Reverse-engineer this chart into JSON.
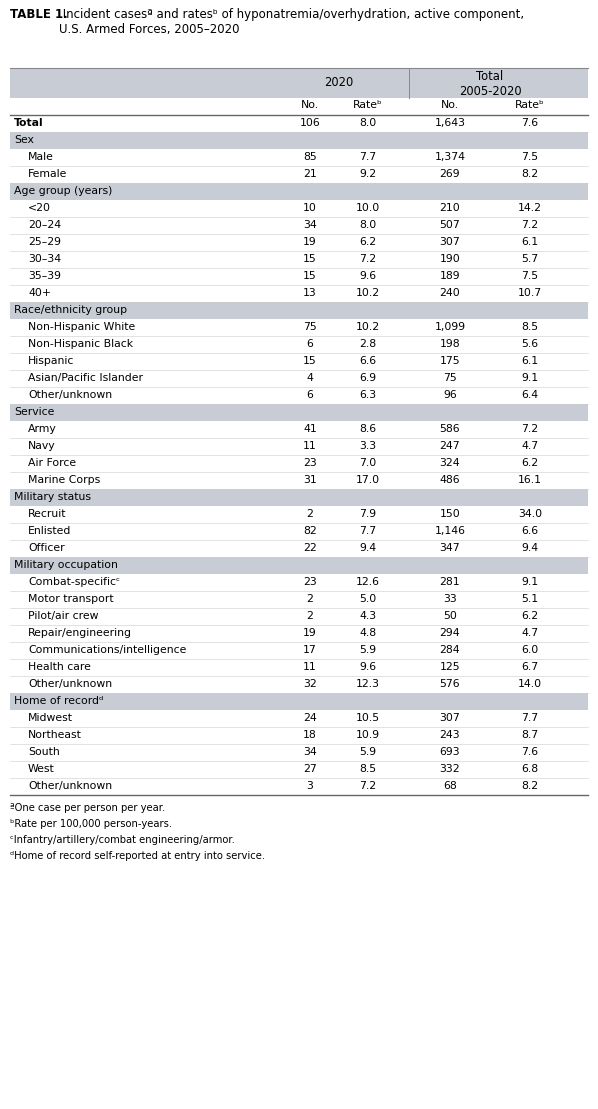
{
  "title_bold": "TABLE 1.",
  "title_rest": " Incident casesª and ratesᵇ of hyponatremia/overhydration, active component,\nU.S. Armed Forces, 2005–2020",
  "section_bg_color": "#c8ccd4",
  "white": "#ffffff",
  "rows": [
    {
      "label": "Total",
      "indent": 0,
      "is_section": false,
      "no2020": "106",
      "rate2020": "8.0",
      "nototal": "1,643",
      "ratetotal": "7.6",
      "bold_label": true
    },
    {
      "label": "Sex",
      "indent": 0,
      "is_section": true,
      "no2020": "",
      "rate2020": "",
      "nototal": "",
      "ratetotal": ""
    },
    {
      "label": "Male",
      "indent": 1,
      "is_section": false,
      "no2020": "85",
      "rate2020": "7.7",
      "nototal": "1,374",
      "ratetotal": "7.5",
      "bold_label": false
    },
    {
      "label": "Female",
      "indent": 1,
      "is_section": false,
      "no2020": "21",
      "rate2020": "9.2",
      "nototal": "269",
      "ratetotal": "8.2",
      "bold_label": false
    },
    {
      "label": "Age group (years)",
      "indent": 0,
      "is_section": true,
      "no2020": "",
      "rate2020": "",
      "nototal": "",
      "ratetotal": ""
    },
    {
      "label": "<20",
      "indent": 1,
      "is_section": false,
      "no2020": "10",
      "rate2020": "10.0",
      "nototal": "210",
      "ratetotal": "14.2",
      "bold_label": false
    },
    {
      "label": "20–24",
      "indent": 1,
      "is_section": false,
      "no2020": "34",
      "rate2020": "8.0",
      "nototal": "507",
      "ratetotal": "7.2",
      "bold_label": false
    },
    {
      "label": "25–29",
      "indent": 1,
      "is_section": false,
      "no2020": "19",
      "rate2020": "6.2",
      "nototal": "307",
      "ratetotal": "6.1",
      "bold_label": false
    },
    {
      "label": "30–34",
      "indent": 1,
      "is_section": false,
      "no2020": "15",
      "rate2020": "7.2",
      "nototal": "190",
      "ratetotal": "5.7",
      "bold_label": false
    },
    {
      "label": "35–39",
      "indent": 1,
      "is_section": false,
      "no2020": "15",
      "rate2020": "9.6",
      "nototal": "189",
      "ratetotal": "7.5",
      "bold_label": false
    },
    {
      "label": "40+",
      "indent": 1,
      "is_section": false,
      "no2020": "13",
      "rate2020": "10.2",
      "nototal": "240",
      "ratetotal": "10.7",
      "bold_label": false
    },
    {
      "label": "Race/ethnicity group",
      "indent": 0,
      "is_section": true,
      "no2020": "",
      "rate2020": "",
      "nototal": "",
      "ratetotal": ""
    },
    {
      "label": "Non-Hispanic White",
      "indent": 1,
      "is_section": false,
      "no2020": "75",
      "rate2020": "10.2",
      "nototal": "1,099",
      "ratetotal": "8.5",
      "bold_label": false
    },
    {
      "label": "Non-Hispanic Black",
      "indent": 1,
      "is_section": false,
      "no2020": "6",
      "rate2020": "2.8",
      "nototal": "198",
      "ratetotal": "5.6",
      "bold_label": false
    },
    {
      "label": "Hispanic",
      "indent": 1,
      "is_section": false,
      "no2020": "15",
      "rate2020": "6.6",
      "nototal": "175",
      "ratetotal": "6.1",
      "bold_label": false
    },
    {
      "label": "Asian/Pacific Islander",
      "indent": 1,
      "is_section": false,
      "no2020": "4",
      "rate2020": "6.9",
      "nototal": "75",
      "ratetotal": "9.1",
      "bold_label": false
    },
    {
      "label": "Other/unknown",
      "indent": 1,
      "is_section": false,
      "no2020": "6",
      "rate2020": "6.3",
      "nototal": "96",
      "ratetotal": "6.4",
      "bold_label": false
    },
    {
      "label": "Service",
      "indent": 0,
      "is_section": true,
      "no2020": "",
      "rate2020": "",
      "nototal": "",
      "ratetotal": ""
    },
    {
      "label": "Army",
      "indent": 1,
      "is_section": false,
      "no2020": "41",
      "rate2020": "8.6",
      "nototal": "586",
      "ratetotal": "7.2",
      "bold_label": false
    },
    {
      "label": "Navy",
      "indent": 1,
      "is_section": false,
      "no2020": "11",
      "rate2020": "3.3",
      "nototal": "247",
      "ratetotal": "4.7",
      "bold_label": false
    },
    {
      "label": "Air Force",
      "indent": 1,
      "is_section": false,
      "no2020": "23",
      "rate2020": "7.0",
      "nototal": "324",
      "ratetotal": "6.2",
      "bold_label": false
    },
    {
      "label": "Marine Corps",
      "indent": 1,
      "is_section": false,
      "no2020": "31",
      "rate2020": "17.0",
      "nototal": "486",
      "ratetotal": "16.1",
      "bold_label": false
    },
    {
      "label": "Military status",
      "indent": 0,
      "is_section": true,
      "no2020": "",
      "rate2020": "",
      "nototal": "",
      "ratetotal": ""
    },
    {
      "label": "Recruit",
      "indent": 1,
      "is_section": false,
      "no2020": "2",
      "rate2020": "7.9",
      "nototal": "150",
      "ratetotal": "34.0",
      "bold_label": false
    },
    {
      "label": "Enlisted",
      "indent": 1,
      "is_section": false,
      "no2020": "82",
      "rate2020": "7.7",
      "nototal": "1,146",
      "ratetotal": "6.6",
      "bold_label": false
    },
    {
      "label": "Officer",
      "indent": 1,
      "is_section": false,
      "no2020": "22",
      "rate2020": "9.4",
      "nototal": "347",
      "ratetotal": "9.4",
      "bold_label": false
    },
    {
      "label": "Military occupation",
      "indent": 0,
      "is_section": true,
      "no2020": "",
      "rate2020": "",
      "nototal": "",
      "ratetotal": ""
    },
    {
      "label": "Combat-specificᶜ",
      "indent": 1,
      "is_section": false,
      "no2020": "23",
      "rate2020": "12.6",
      "nototal": "281",
      "ratetotal": "9.1",
      "bold_label": false
    },
    {
      "label": "Motor transport",
      "indent": 1,
      "is_section": false,
      "no2020": "2",
      "rate2020": "5.0",
      "nototal": "33",
      "ratetotal": "5.1",
      "bold_label": false
    },
    {
      "label": "Pilot/air crew",
      "indent": 1,
      "is_section": false,
      "no2020": "2",
      "rate2020": "4.3",
      "nototal": "50",
      "ratetotal": "6.2",
      "bold_label": false
    },
    {
      "label": "Repair/engineering",
      "indent": 1,
      "is_section": false,
      "no2020": "19",
      "rate2020": "4.8",
      "nototal": "294",
      "ratetotal": "4.7",
      "bold_label": false
    },
    {
      "label": "Communications/intelligence",
      "indent": 1,
      "is_section": false,
      "no2020": "17",
      "rate2020": "5.9",
      "nototal": "284",
      "ratetotal": "6.0",
      "bold_label": false
    },
    {
      "label": "Health care",
      "indent": 1,
      "is_section": false,
      "no2020": "11",
      "rate2020": "9.6",
      "nototal": "125",
      "ratetotal": "6.7",
      "bold_label": false
    },
    {
      "label": "Other/unknown",
      "indent": 1,
      "is_section": false,
      "no2020": "32",
      "rate2020": "12.3",
      "nototal": "576",
      "ratetotal": "14.0",
      "bold_label": false
    },
    {
      "label": "Home of recordᵈ",
      "indent": 0,
      "is_section": true,
      "no2020": "",
      "rate2020": "",
      "nototal": "",
      "ratetotal": ""
    },
    {
      "label": "Midwest",
      "indent": 1,
      "is_section": false,
      "no2020": "24",
      "rate2020": "10.5",
      "nototal": "307",
      "ratetotal": "7.7",
      "bold_label": false
    },
    {
      "label": "Northeast",
      "indent": 1,
      "is_section": false,
      "no2020": "18",
      "rate2020": "10.9",
      "nototal": "243",
      "ratetotal": "8.7",
      "bold_label": false
    },
    {
      "label": "South",
      "indent": 1,
      "is_section": false,
      "no2020": "34",
      "rate2020": "5.9",
      "nototal": "693",
      "ratetotal": "7.6",
      "bold_label": false
    },
    {
      "label": "West",
      "indent": 1,
      "is_section": false,
      "no2020": "27",
      "rate2020": "8.5",
      "nototal": "332",
      "ratetotal": "6.8",
      "bold_label": false
    },
    {
      "label": "Other/unknown",
      "indent": 1,
      "is_section": false,
      "no2020": "3",
      "rate2020": "7.2",
      "nototal": "68",
      "ratetotal": "8.2",
      "bold_label": false
    }
  ],
  "footnotes": [
    "ªOne case per person per year.",
    "ᵇRate per 100,000 person-years.",
    "ᶜInfantry/artillery/combat engineering/armor.",
    "ᵈHome of record self-reported at entry into service."
  ],
  "font_size": 7.8,
  "footnote_font_size": 7.2,
  "title_font_size": 8.5
}
